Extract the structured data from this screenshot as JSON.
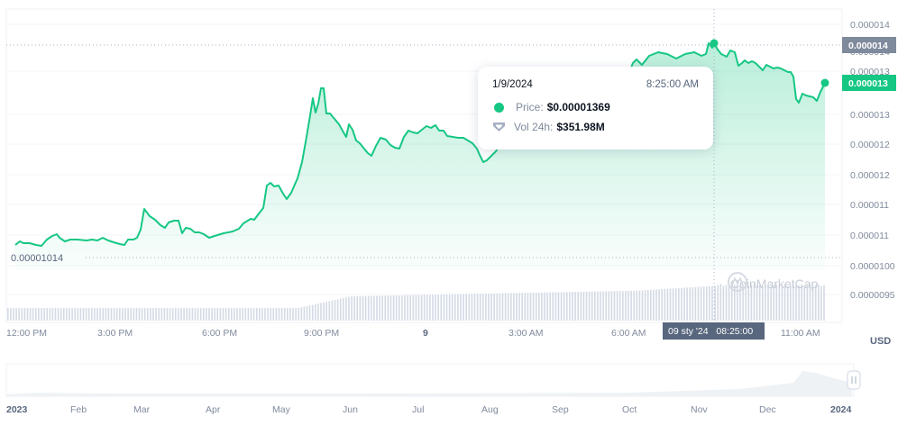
{
  "chart_data": {
    "type": "area",
    "title": "",
    "currency": "USD",
    "xlabel": "",
    "ylabel": "USD",
    "y_ticks": [
      "0.000014",
      "0.000014",
      "0.000013",
      "0.000013",
      "0.000012",
      "0.000012",
      "0.000011",
      "0.000011",
      "0.0000100",
      "0.0000095"
    ],
    "x_ticks": [
      "12:00 PM",
      "3:00 PM",
      "6:00 PM",
      "9:00 PM",
      "9",
      "3:00 AM",
      "6:00 AM",
      "11:00 AM"
    ],
    "ylim": [
      9.3e-06,
      1.42e-05
    ],
    "series": [
      {
        "name": "Price",
        "color": "#16c784",
        "x": [
          "12:00 PM",
          "12:15 PM",
          "12:30 PM",
          "1:00 PM",
          "1:30 PM",
          "2:00 PM",
          "2:30 PM",
          "3:00 PM",
          "3:30 PM",
          "3:45 PM",
          "4:00 PM",
          "4:30 PM",
          "5:00 PM",
          "5:30 PM",
          "6:00 PM",
          "6:30 PM",
          "7:00 PM",
          "7:30 PM",
          "7:45 PM",
          "8:00 PM",
          "8:30 PM",
          "8:45 PM",
          "9:00 PM",
          "9:15 PM",
          "9:30 PM",
          "10:00 PM",
          "10:30 PM",
          "11:00 PM",
          "11:30 PM",
          "12:00 AM",
          "12:30 AM",
          "1:00 AM",
          "1:30 AM",
          "2:00 AM",
          "2:30 AM",
          "3:00 AM",
          "4:00 AM",
          "5:00 AM",
          "6:00 AM",
          "7:00 AM",
          "7:30 AM",
          "8:00 AM",
          "8:25 AM",
          "8:45 AM",
          "9:00 AM",
          "9:30 AM",
          "10:00 AM",
          "10:30 AM",
          "11:00 AM",
          "11:30 AM",
          "11:45 AM"
        ],
        "values": [
          1.034e-05,
          1.04e-05,
          1.036e-05,
          1.048e-05,
          1.04e-05,
          1.042e-05,
          1.038e-05,
          1.035e-05,
          1.045e-05,
          1.115e-05,
          1.082e-05,
          1.075e-05,
          1.088e-05,
          1.06e-05,
          1.052e-05,
          1.058e-05,
          1.07e-05,
          1.1e-05,
          1.145e-05,
          1.16e-05,
          1.14e-05,
          1.175e-05,
          1.305e-05,
          1.345e-05,
          1.35e-05,
          1.295e-05,
          1.255e-05,
          1.235e-05,
          1.258e-05,
          1.25e-05,
          1.278e-05,
          1.29e-05,
          1.275e-05,
          1.265e-05,
          1.215e-05,
          1.23e-05,
          1.25e-05,
          1.29e-05,
          1.33e-05,
          1.34e-05,
          1.36e-05,
          1.385e-05,
          1.369e-05,
          1.378e-05,
          1.372e-05,
          1.35e-05,
          1.345e-05,
          1.34e-05,
          1.31e-05,
          1.3e-05,
          1.331e-05
        ]
      },
      {
        "name": "Vol 24h",
        "color": "#cfd6e4",
        "trend": "flat ~baseline from 12:00 PM to 8:00 PM, gradual rise after 8:30 PM, higher plateau from 6:00 AM to 11:45 AM"
      }
    ],
    "reference_lines": {
      "current_price_label": "0.000013",
      "crosshair_price_label": "0.000014",
      "period_open_label": "0.00001014"
    },
    "grid": true,
    "legend": "tooltip"
  },
  "tooltip": {
    "date": "1/9/2024",
    "time": "8:25:00 AM",
    "price_label": "Price:",
    "price_value": "$0.00001369",
    "vol_label": "Vol 24h:",
    "vol_value": "$351.98M"
  },
  "crosshair": {
    "x_label": "09 sty '24   08:25:00",
    "y_label": "0.000014"
  },
  "current_price_badge": "0.000013",
  "open_price_label": "0.00001014",
  "currency_label": "USD",
  "watermark": "CoinMarketCap",
  "navigator": {
    "labels": [
      "2023",
      "Feb",
      "Mar",
      "Apr",
      "May",
      "Jun",
      "Jul",
      "Aug",
      "Sep",
      "Oct",
      "Nov",
      "Dec",
      "2024"
    ]
  },
  "colors": {
    "price_line": "#16c784",
    "badge_current": "#16c784",
    "badge_crosshair": "#808a9d",
    "xbadge": "#58667e",
    "volume": "#cfd6e4",
    "grid": "#eff2f5",
    "axis_text": "#808a9d"
  }
}
